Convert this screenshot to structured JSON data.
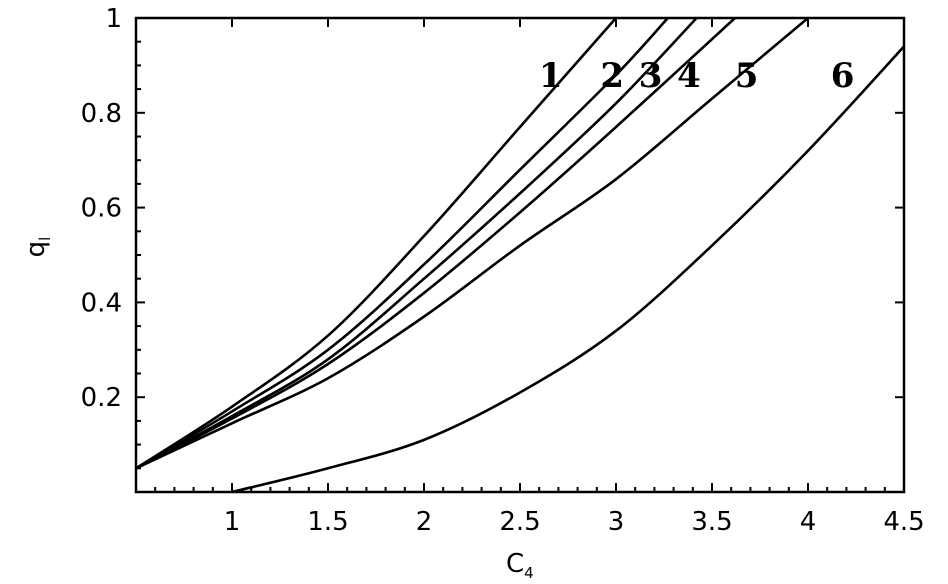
{
  "chart_data": {
    "type": "line",
    "xlabel": "C",
    "xlabel_subscript": "4",
    "ylabel": "q",
    "ylabel_subscript": "l",
    "xlim": [
      0.5,
      4.5
    ],
    "ylim": [
      0.0,
      1.0
    ],
    "grid": false,
    "x_ticks": [
      1,
      1.5,
      2,
      2.5,
      3,
      3.5,
      4,
      4.5
    ],
    "x_tick_labels": [
      "1",
      "1.5",
      "2",
      "2.5",
      "3",
      "3.5",
      "4",
      "4.5"
    ],
    "y_ticks": [
      0.2,
      0.4,
      0.6,
      0.8,
      1.0
    ],
    "y_tick_labels": [
      "0.2",
      "0.4",
      "0.6",
      "0.8",
      "1"
    ],
    "series": [
      {
        "name": "1",
        "x": [
          0.5,
          1.0,
          1.5,
          2.0,
          2.5,
          3.0
        ],
        "y": [
          0.05,
          0.18,
          0.33,
          0.54,
          0.77,
          1.0
        ],
        "label_at": [
          2.66,
          0.88
        ]
      },
      {
        "name": "2",
        "x": [
          0.5,
          1.0,
          1.5,
          2.0,
          2.5,
          3.0,
          3.27
        ],
        "y": [
          0.05,
          0.17,
          0.3,
          0.48,
          0.68,
          0.88,
          1.0
        ],
        "label_at": [
          2.98,
          0.88
        ]
      },
      {
        "name": "3",
        "x": [
          0.5,
          1.0,
          1.5,
          2.0,
          2.5,
          3.0,
          3.42
        ],
        "y": [
          0.05,
          0.16,
          0.28,
          0.45,
          0.63,
          0.82,
          1.0
        ],
        "label_at": [
          3.18,
          0.88
        ]
      },
      {
        "name": "4",
        "x": [
          0.5,
          1.0,
          1.5,
          2.0,
          2.5,
          3.0,
          3.62
        ],
        "y": [
          0.05,
          0.155,
          0.27,
          0.42,
          0.59,
          0.77,
          1.0
        ],
        "label_at": [
          3.38,
          0.88
        ]
      },
      {
        "name": "5",
        "x": [
          0.5,
          1.0,
          1.5,
          2.0,
          2.5,
          3.0,
          3.5,
          4.0
        ],
        "y": [
          0.05,
          0.145,
          0.24,
          0.37,
          0.52,
          0.66,
          0.83,
          1.0
        ],
        "label_at": [
          3.68,
          0.88
        ]
      },
      {
        "name": "6",
        "x": [
          1.0,
          1.5,
          2.0,
          2.5,
          3.0,
          3.5,
          4.0,
          4.5
        ],
        "y": [
          0.0,
          0.05,
          0.11,
          0.21,
          0.34,
          0.52,
          0.72,
          0.94
        ],
        "label_at": [
          4.18,
          0.88
        ]
      }
    ]
  }
}
